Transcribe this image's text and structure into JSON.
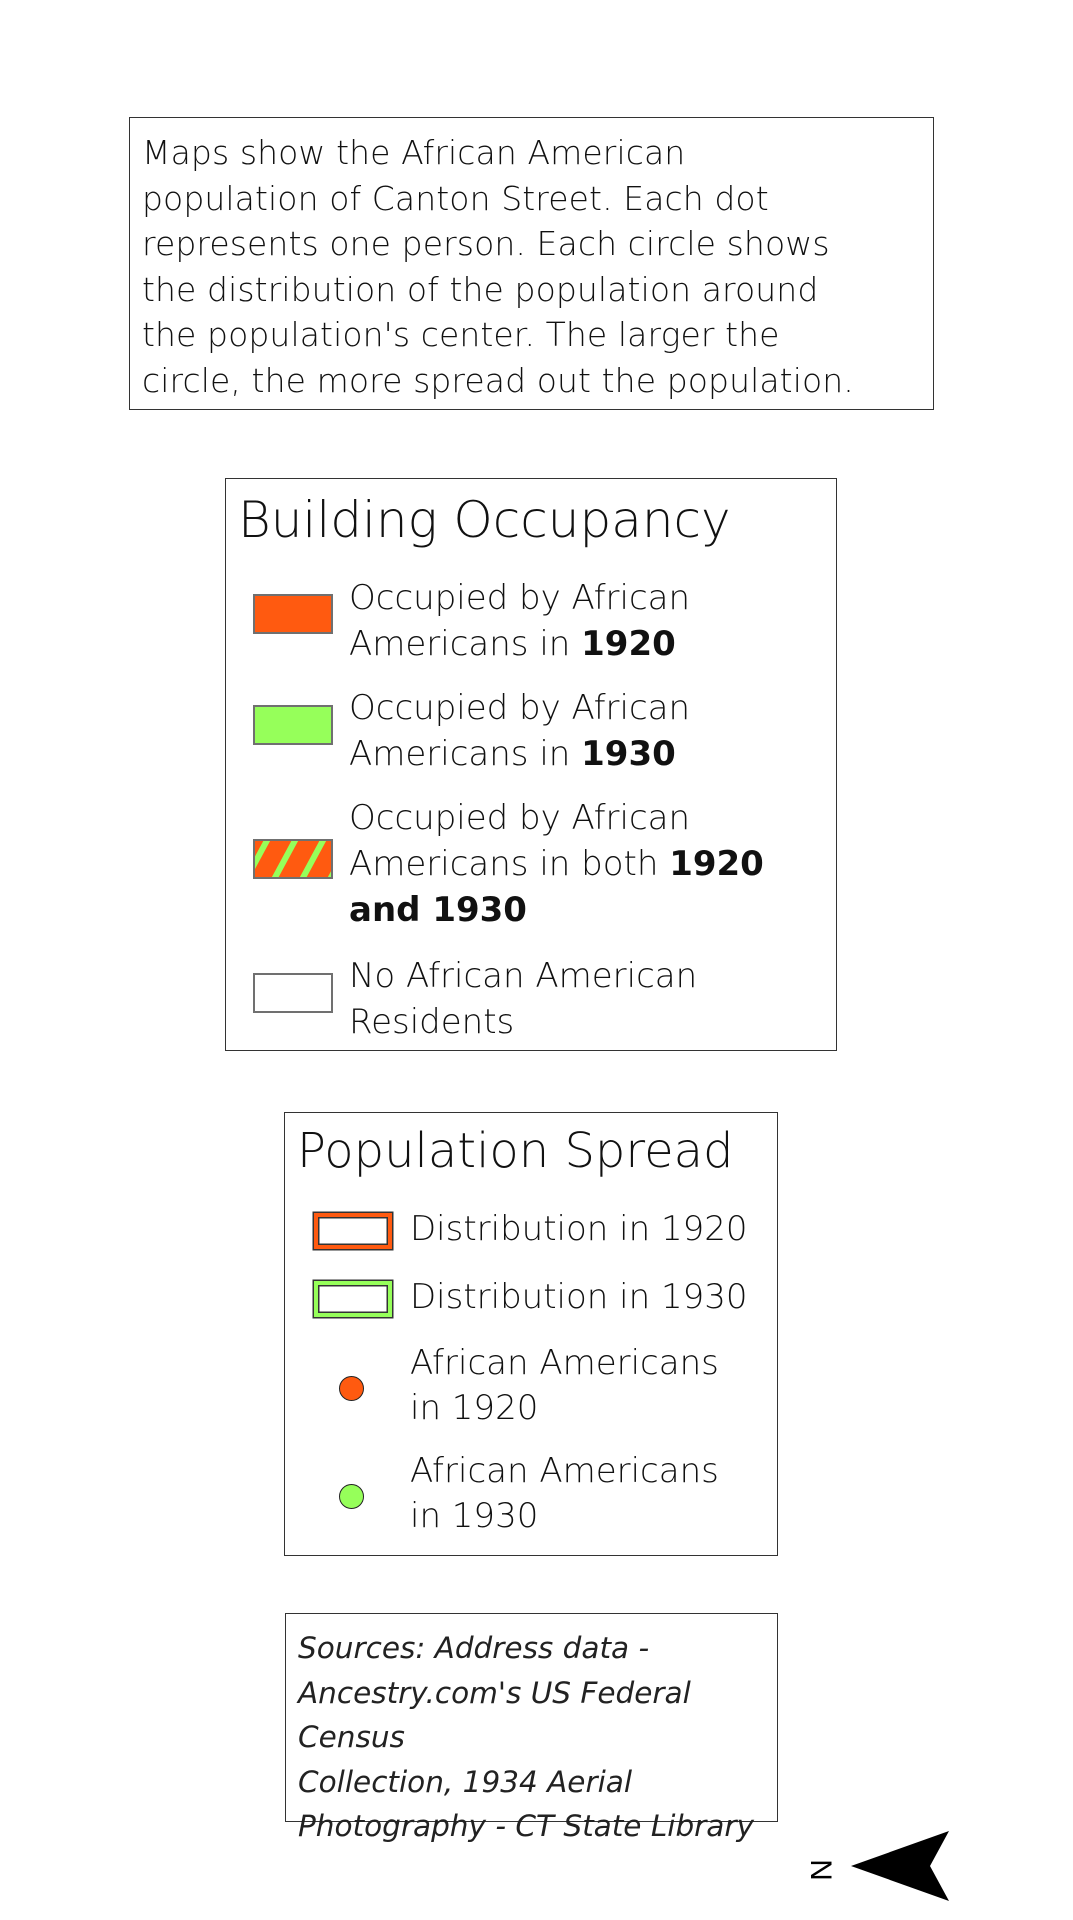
{
  "intro": {
    "lines": [
      "Maps show the African American",
      "population of Canton Street. Each dot",
      "represents one person. Each circle shows",
      "the distribution of the population around",
      "the population's center. The larger the",
      "circle, the more spread out the population."
    ]
  },
  "building_occupancy": {
    "title": "Building Occupancy",
    "items": [
      {
        "line1": "Occupied by African",
        "line2_prefix": "Americans in ",
        "line2_bold": "1920",
        "line3_bold": "",
        "fill": "#ff5a10",
        "pattern": "solid"
      },
      {
        "line1": "Occupied by African",
        "line2_prefix": "Americans in ",
        "line2_bold": "1930",
        "line3_bold": "",
        "fill": "#96ff5a",
        "pattern": "solid"
      },
      {
        "line1": "Occupied by African",
        "line2_prefix": "Americans in both ",
        "line2_bold": "1920",
        "line3_bold": "and 1930",
        "fill": "#ff5a10",
        "stripe": "#96ff5a",
        "pattern": "hatched"
      },
      {
        "line1": "No African American",
        "line2_prefix": "Residents",
        "line2_bold": "",
        "line3_bold": "",
        "fill": "#ffffff",
        "pattern": "none"
      }
    ]
  },
  "population_spread": {
    "title": "Population Spread",
    "distribution_1920": {
      "label": "Distribution in 1920",
      "color": "#ff5a10"
    },
    "distribution_1930": {
      "label": "Distribution in 1930",
      "color": "#96ff5a"
    },
    "dots_1920": {
      "line1": "African Americans",
      "line2": "in 1920",
      "color": "#ff5a10"
    },
    "dots_1930": {
      "line1": "African Americans",
      "line2": "in 1930",
      "color": "#96ff5a"
    }
  },
  "sources": {
    "lines": [
      "Sources: Address data -",
      "Ancestry.com's US Federal Census",
      "Collection, 1934 Aerial",
      "Photography - CT State Library"
    ]
  },
  "north_arrow": {
    "label": "N",
    "icon": "north-arrow-icon"
  }
}
